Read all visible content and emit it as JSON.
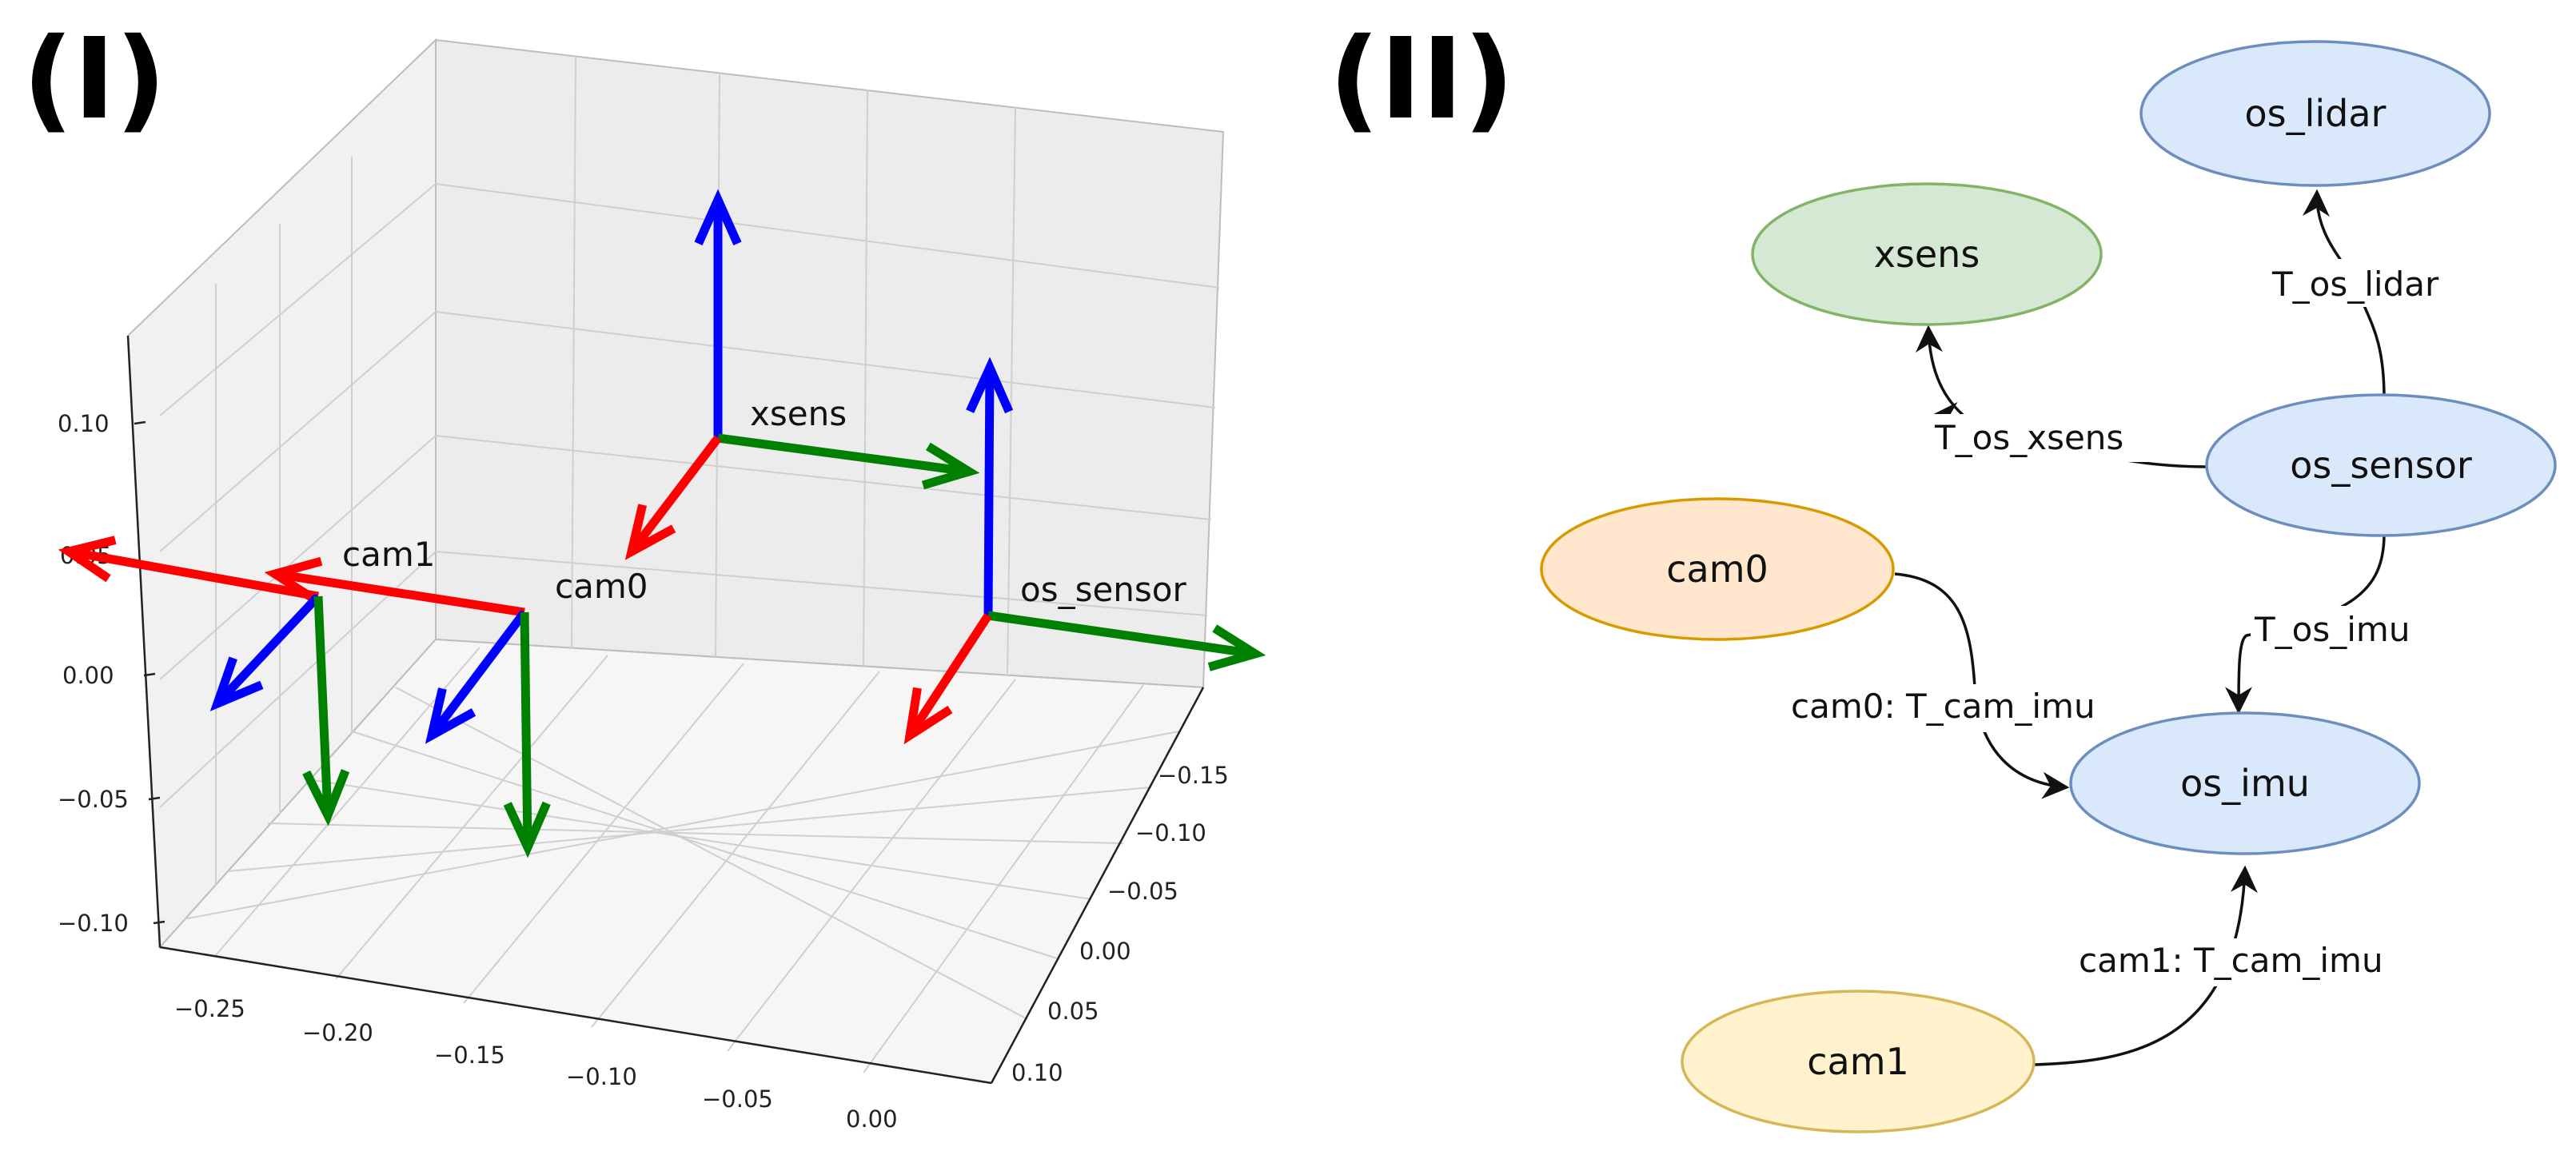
{
  "panel_i_label": "(I)",
  "panel_ii_label": "(II)",
  "plot3d": {
    "z_ticks": [
      "0.10",
      "0.05",
      "0.00",
      "−0.05",
      "−0.10"
    ],
    "x_ticks": [
      "−0.25",
      "−0.20",
      "−0.15",
      "−0.10",
      "−0.05",
      "0.00"
    ],
    "y_ticks": [
      "−0.15",
      "−0.10",
      "−0.05",
      "0.00",
      "0.05",
      "0.10"
    ],
    "frames": [
      {
        "id": "xsens",
        "label": "xsens"
      },
      {
        "id": "os_sensor",
        "label": "os_sensor"
      },
      {
        "id": "cam0",
        "label": "cam0"
      },
      {
        "id": "cam1",
        "label": "cam1"
      }
    ],
    "axis_colors": {
      "x": "#ff0000",
      "y": "#008000",
      "z": "#0000ff"
    }
  },
  "graph": {
    "nodes": [
      {
        "id": "os_lidar",
        "label": "os_lidar",
        "fill": "#dae8fc",
        "stroke": "#6c8ebf"
      },
      {
        "id": "xsens",
        "label": "xsens",
        "fill": "#d5e8d4",
        "stroke": "#82b366"
      },
      {
        "id": "os_sensor",
        "label": "os_sensor",
        "fill": "#dae8fc",
        "stroke": "#6c8ebf"
      },
      {
        "id": "cam0",
        "label": "cam0",
        "fill": "#ffe6cc",
        "stroke": "#d79b00"
      },
      {
        "id": "os_imu",
        "label": "os_imu",
        "fill": "#dae8fc",
        "stroke": "#6c8ebf"
      },
      {
        "id": "cam1",
        "label": "cam1",
        "fill": "#fff2cc",
        "stroke": "#d6b656"
      }
    ],
    "edges": [
      {
        "id": "T_os_lidar",
        "from": "os_sensor",
        "to": "os_lidar",
        "label": "T_os_lidar"
      },
      {
        "id": "T_os_xsens",
        "from": "os_sensor",
        "to": "xsens",
        "label": "T_os_xsens"
      },
      {
        "id": "T_os_imu",
        "from": "os_sensor",
        "to": "os_imu",
        "label": "T_os_imu"
      },
      {
        "id": "cam0_T_cam_imu",
        "from": "cam0",
        "to": "os_imu",
        "label": "cam0: T_cam_imu"
      },
      {
        "id": "cam1_T_cam_imu",
        "from": "cam1",
        "to": "os_imu",
        "label": "cam1: T_cam_imu"
      }
    ]
  }
}
